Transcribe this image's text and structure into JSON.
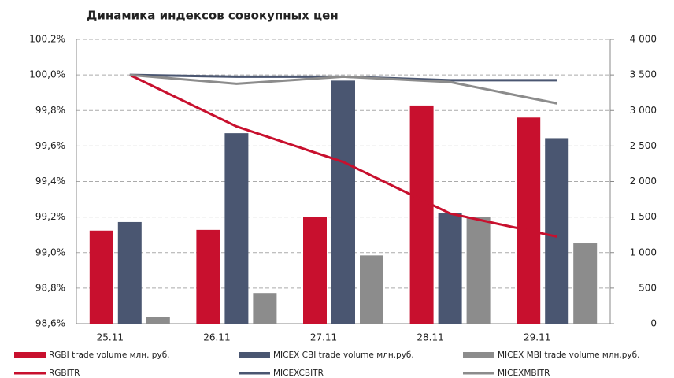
{
  "chart_data": {
    "type": "bar",
    "title": "Динамика индексов совокупных цен",
    "categories": [
      "25.11",
      "26.11",
      "27.11",
      "28.11",
      "29.11"
    ],
    "series": [
      {
        "name": "RGBI trade volume млн. руб.",
        "type": "bar",
        "axis": "y2",
        "color": "#c8102e",
        "values": [
          1310,
          1320,
          1500,
          3070,
          2900
        ]
      },
      {
        "name": "MICEX CBI trade volume млн.руб.",
        "type": "bar",
        "axis": "y2",
        "color": "#4a5671",
        "values": [
          1430,
          2680,
          3420,
          1560,
          2610
        ]
      },
      {
        "name": "MICEX MBI trade volume млн.руб.",
        "type": "bar",
        "axis": "y2",
        "color": "#8c8c8c",
        "values": [
          90,
          430,
          960,
          1500,
          1130
        ]
      },
      {
        "name": "RGBITR",
        "type": "line",
        "color": "#c8102e",
        "values": [
          100.0,
          99.71,
          99.51,
          99.22,
          99.09
        ]
      },
      {
        "name": "MICEXCBITR",
        "type": "line",
        "color": "#4a5671",
        "values": [
          100.0,
          99.99,
          99.99,
          99.97,
          99.97
        ]
      },
      {
        "name": "MICEXMBITR",
        "type": "line",
        "color": "#8c8c8c",
        "values": [
          100.0,
          99.95,
          99.99,
          99.96,
          99.84
        ]
      }
    ],
    "ylim": [
      98.6,
      100.2
    ],
    "yticks": [
      {
        "value": 98.6,
        "label": "98,6%"
      },
      {
        "value": 98.8,
        "label": "98,8%"
      },
      {
        "value": 99.0,
        "label": "99,0%"
      },
      {
        "value": 99.2,
        "label": "99,2%"
      },
      {
        "value": 99.4,
        "label": "99,4%"
      },
      {
        "value": 99.6,
        "label": "99,6%"
      },
      {
        "value": 99.8,
        "label": "99,8%"
      },
      {
        "value": 100.0,
        "label": "100,0%"
      },
      {
        "value": 100.2,
        "label": "100,2%"
      }
    ],
    "y2lim": [
      0,
      4000
    ],
    "y2ticks": [
      0,
      500,
      {
        "value": 1000,
        "label": "1 000"
      },
      {
        "value": 1500,
        "label": "1 500"
      },
      {
        "value": 2000,
        "label": "2 000"
      },
      {
        "value": 2500,
        "label": "2 500"
      },
      {
        "value": 3000,
        "label": "3 000"
      },
      {
        "value": 3500,
        "label": "3 500"
      },
      {
        "value": 4000,
        "label": "4 000"
      }
    ],
    "grid": true,
    "legend": "bottom"
  }
}
